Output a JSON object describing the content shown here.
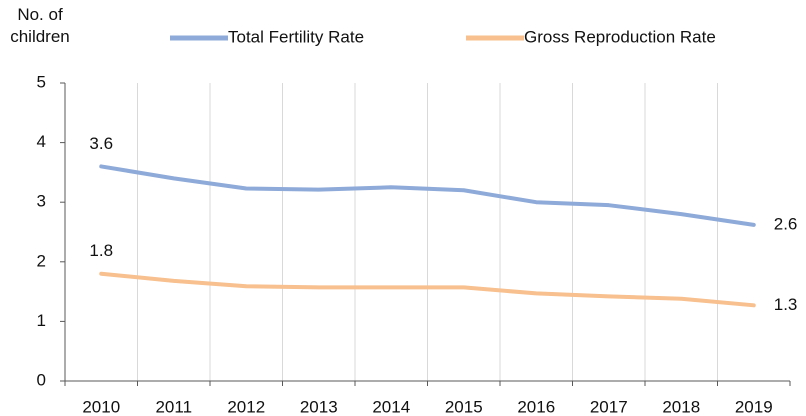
{
  "chart_data": {
    "type": "line",
    "y_label": "No. of children",
    "categories": [
      "2010",
      "2011",
      "2012",
      "2013",
      "2014",
      "2015",
      "2016",
      "2017",
      "2018",
      "2019"
    ],
    "series": [
      {
        "name": "Total Fertility Rate",
        "color": "#8eaad8",
        "values": [
          3.6,
          3.4,
          3.23,
          3.21,
          3.25,
          3.2,
          3.0,
          2.95,
          2.8,
          2.62
        ],
        "value_labels": [
          "3.6",
          null,
          null,
          null,
          null,
          null,
          null,
          null,
          null,
          "2.6"
        ]
      },
      {
        "name": "Gross Reproduction Rate",
        "color": "#f7c08e",
        "values": [
          1.8,
          1.68,
          1.59,
          1.57,
          1.57,
          1.57,
          1.47,
          1.42,
          1.38,
          1.27
        ],
        "value_labels": [
          "1.8",
          null,
          null,
          null,
          null,
          null,
          null,
          null,
          null,
          "1.3"
        ]
      }
    ],
    "ylim": [
      0,
      5
    ],
    "yticks": [
      0,
      1,
      2,
      3,
      4,
      5
    ],
    "grid": "x",
    "legend": "top"
  }
}
